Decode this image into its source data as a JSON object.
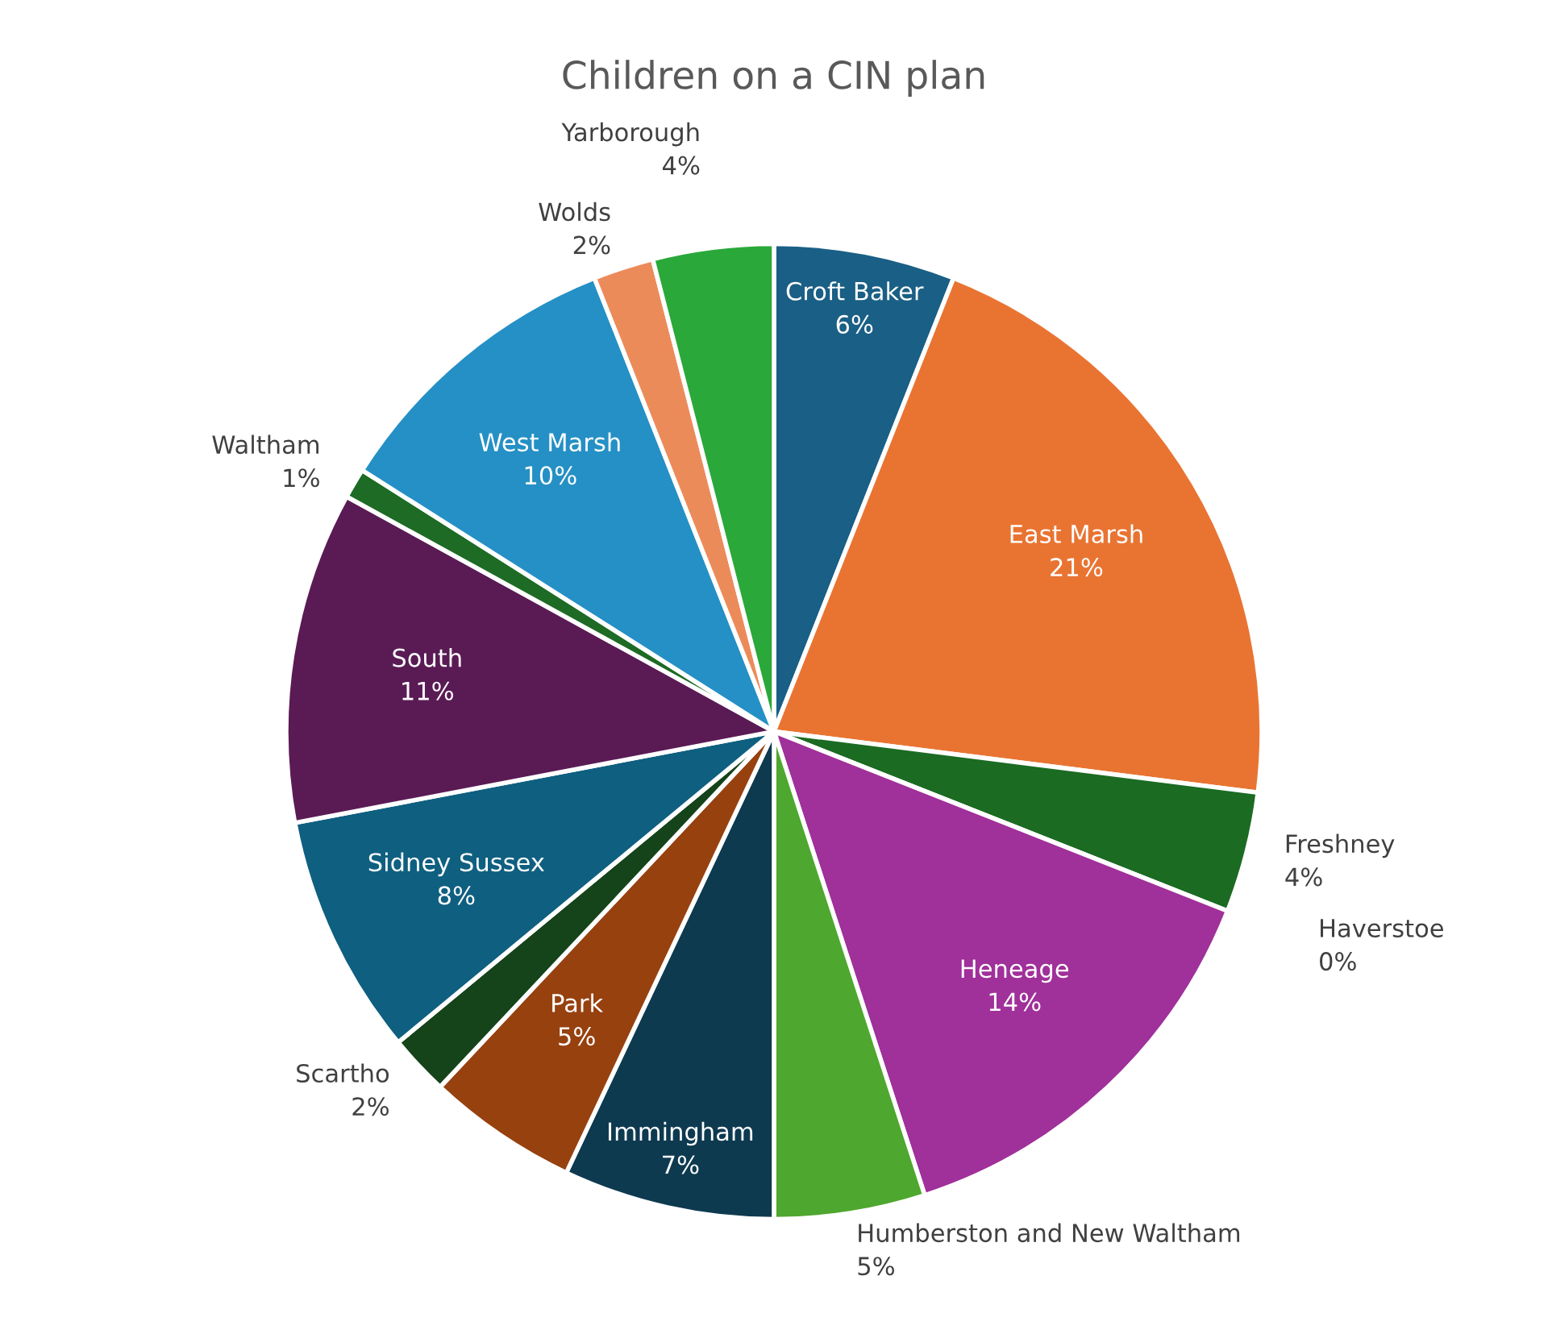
{
  "chart_data": {
    "type": "pie",
    "title": "Children on a CIN plan",
    "categories": [
      "Croft Baker",
      "East Marsh",
      "Freshney",
      "Haverstoe",
      "Heneage",
      "Humberston and New Waltham",
      "Immingham",
      "Park",
      "Scartho",
      "Sidney Sussex",
      "South",
      "Waltham",
      "West Marsh",
      "Wolds",
      "Yarborough"
    ],
    "values": [
      6,
      21,
      4,
      0,
      14,
      5,
      7,
      5,
      2,
      8,
      11,
      1,
      10,
      2,
      4
    ],
    "value_labels": [
      "6%",
      "21%",
      "4%",
      "0%",
      "14%",
      "5%",
      "7%",
      "5%",
      "2%",
      "8%",
      "11%",
      "1%",
      "10%",
      "2%",
      "4%"
    ],
    "colors": [
      "#1a5f85",
      "#e97432",
      "#1b6b22",
      "#2a7a2a",
      "#a0309a",
      "#4ea72e",
      "#0e3a50",
      "#97410f",
      "#15431a",
      "#0f5f80",
      "#5a1b55",
      "#1d6b25",
      "#2590c5",
      "#ec8b5a",
      "#2aa83a"
    ],
    "legend": false
  }
}
